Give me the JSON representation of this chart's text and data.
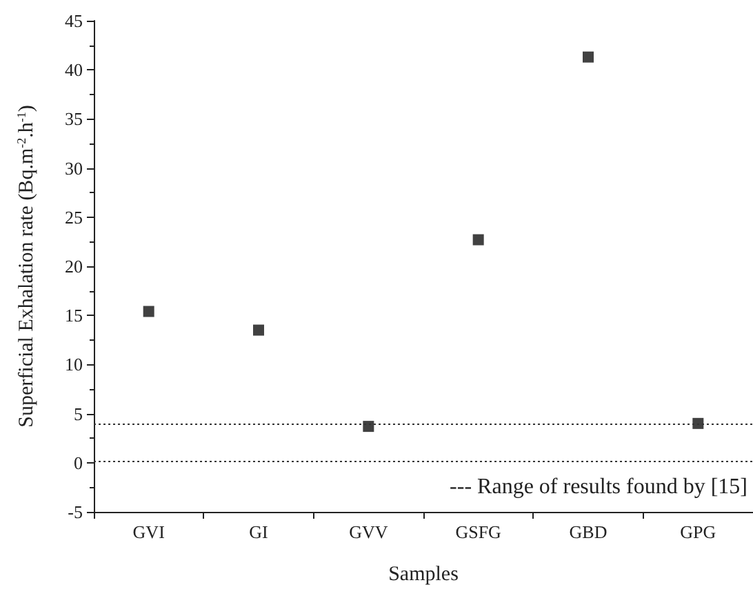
{
  "chart_data": {
    "type": "scatter",
    "xlabel": "Samples",
    "ylabel": "Superficial Exhalation rate (Bq.m$^{-2}$.h$^{-1}$)",
    "categories": [
      "GVI",
      "GI",
      "GVV",
      "GSFG",
      "GBD",
      "GPG"
    ],
    "series": [
      {
        "color": "#111111",
        "values": [
          15.4,
          13.5,
          3.7,
          22.7,
          41.3,
          4.0
        ]
      }
    ],
    "ylim": [
      -5,
      45
    ],
    "yticks": [
      -5,
      0,
      5,
      10,
      15,
      20,
      25,
      30,
      35,
      40,
      45
    ],
    "ref_lines": [
      {
        "axis": "y",
        "value": 3.9,
        "line_style": "dotted",
        "color": "#333333"
      },
      {
        "axis": "y",
        "value": 0.2,
        "line_style": "dotted",
        "color": "#333333"
      }
    ],
    "annotations": [
      "--- Range of results found by [15]"
    ],
    "marker": "square",
    "grid": false
  }
}
